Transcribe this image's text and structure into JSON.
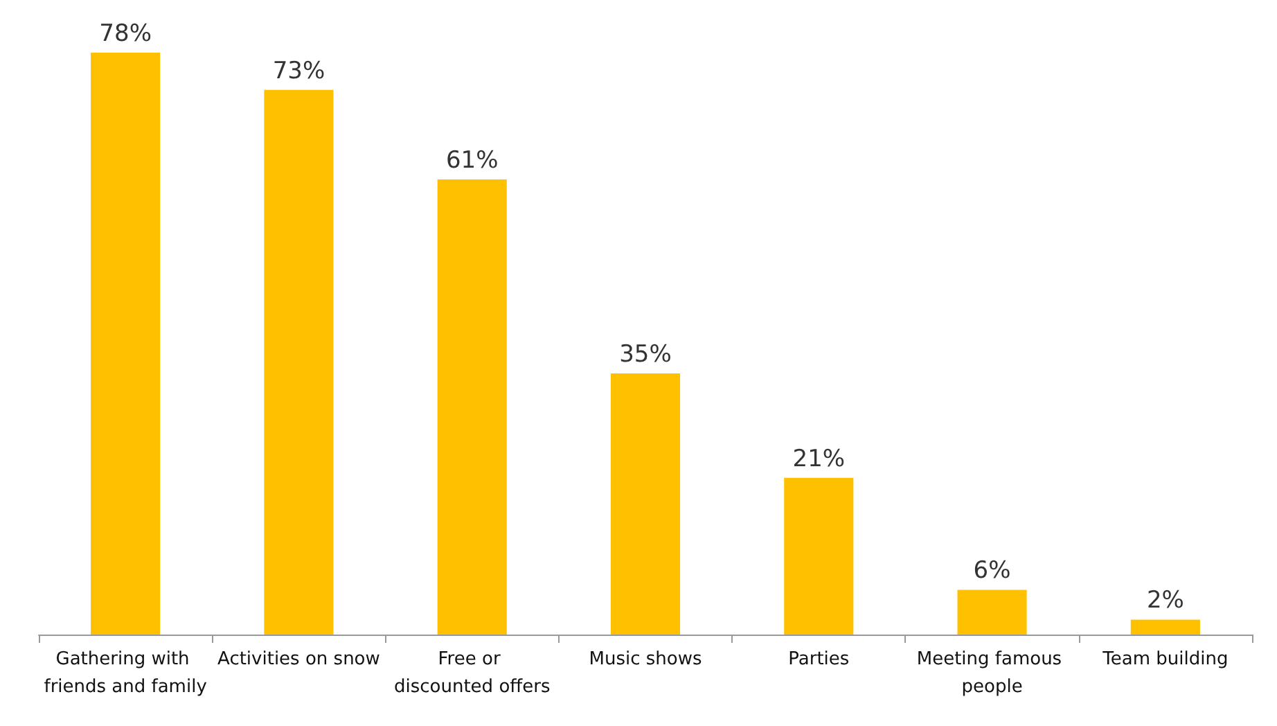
{
  "chart_data": {
    "type": "bar",
    "categories": [
      "Gathering with friends and family",
      "Activities on snow",
      "Free or discounted offers",
      "Music shows",
      "Parties",
      "Meeting famous people",
      "Team building"
    ],
    "values": [
      78,
      73,
      61,
      35,
      21,
      6,
      2
    ],
    "value_labels": [
      "78%",
      "73%",
      "61%",
      "35%",
      "21%",
      "6%",
      "2%"
    ],
    "color": "#ffc000"
  }
}
